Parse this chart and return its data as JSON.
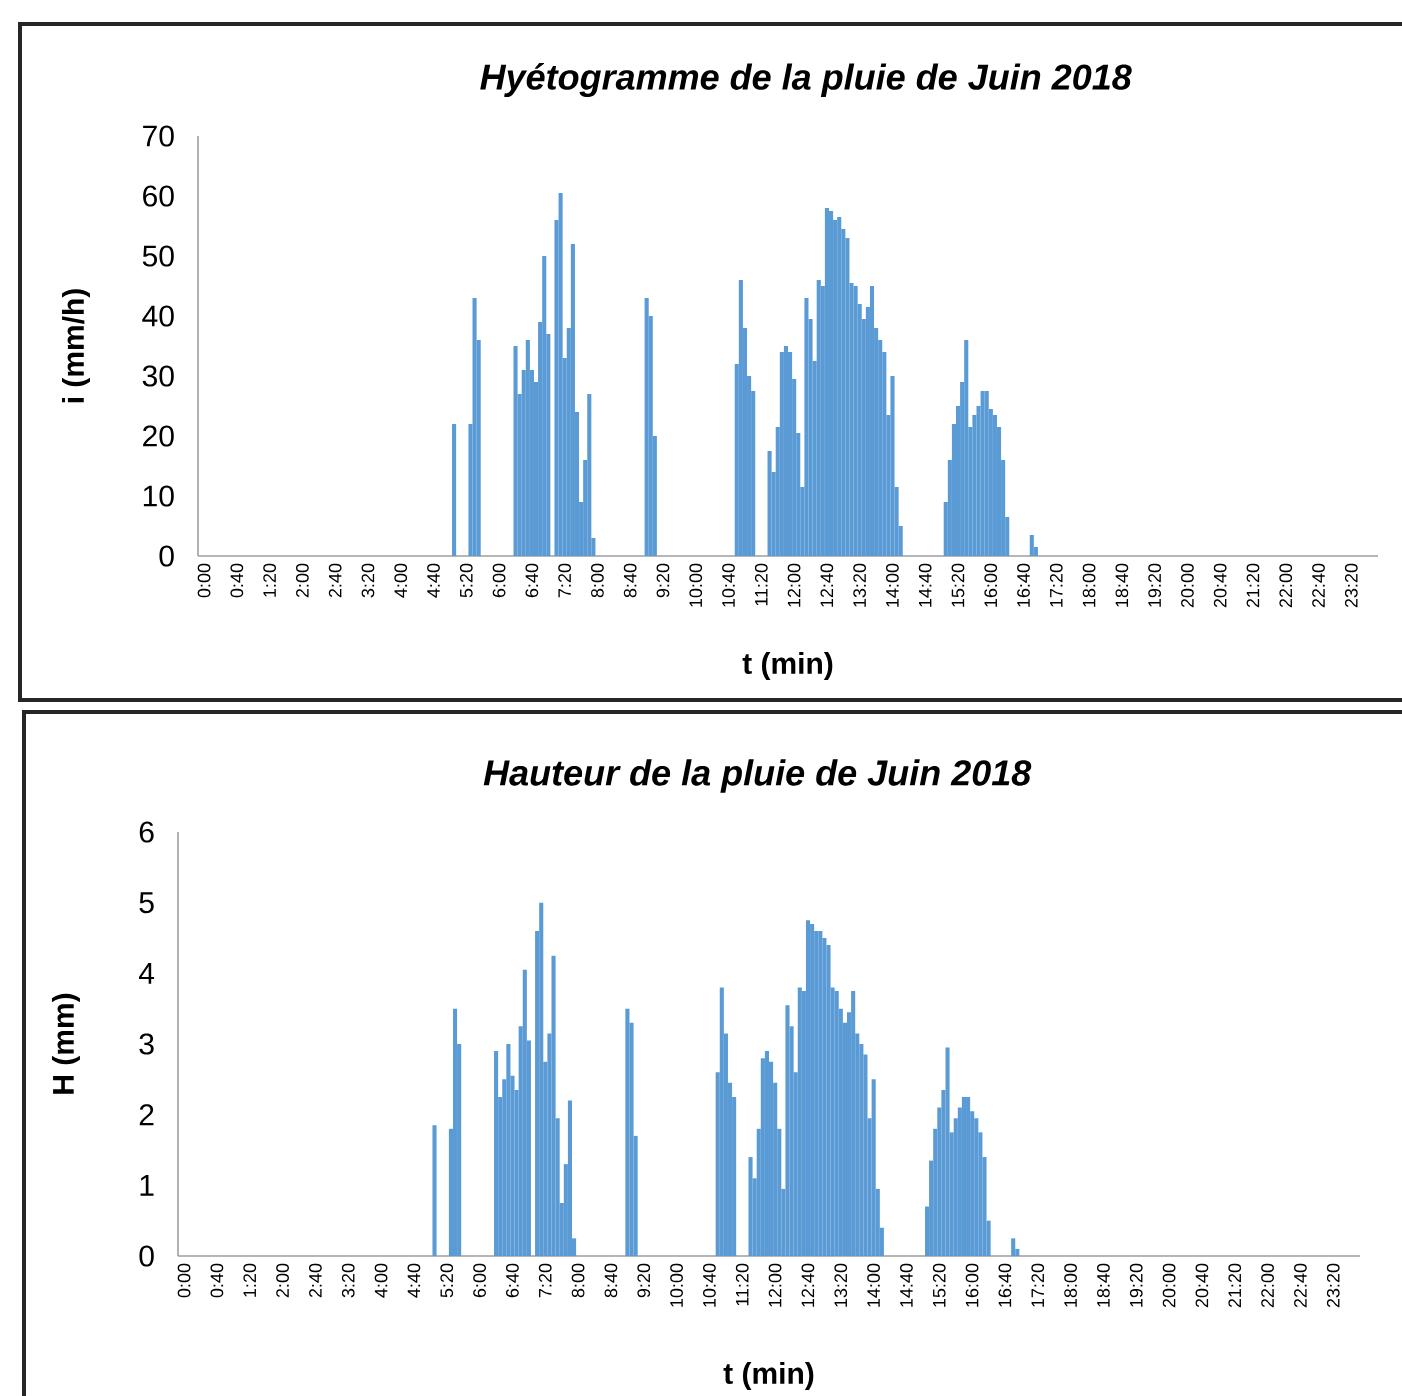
{
  "chart_data": [
    {
      "type": "bar",
      "title": "Hyétogramme de la pluie de Juin 2018",
      "xlabel": "t (min)",
      "ylabel": "i (mm/h)",
      "color": "#5b9bd5",
      "ylim": [
        0,
        70
      ],
      "yticks": [
        0,
        10,
        20,
        30,
        40,
        50,
        60,
        70
      ],
      "categories": [
        "0:00",
        null,
        null,
        null,
        null,
        null,
        null,
        null,
        "0:40",
        null,
        null,
        null,
        null,
        null,
        null,
        null,
        "1:20",
        null,
        null,
        null,
        null,
        null,
        null,
        null,
        "2:00",
        null,
        null,
        null,
        null,
        null,
        null,
        null,
        "2:40",
        null,
        null,
        null,
        null,
        null,
        null,
        null,
        "3:20",
        null,
        null,
        null,
        null,
        null,
        null,
        null,
        "4:00",
        null,
        null,
        null,
        null,
        null,
        null,
        null,
        "4:40",
        null,
        null,
        null,
        null,
        null,
        null,
        null,
        "5:20",
        null,
        null,
        null,
        null,
        null,
        null,
        null,
        "6:00",
        null,
        null,
        null,
        null,
        null,
        null,
        null,
        "6:40",
        null,
        null,
        null,
        null,
        null,
        null,
        null,
        "7:20",
        null,
        null,
        null,
        null,
        null,
        null,
        null,
        "8:00",
        null,
        null,
        null,
        null,
        null,
        null,
        null,
        "8:40",
        null,
        null,
        null,
        null,
        null,
        null,
        null,
        "9:20",
        null,
        null,
        null,
        null,
        null,
        null,
        null,
        "10:00",
        null,
        null,
        null,
        null,
        null,
        null,
        null,
        "10:40",
        null,
        null,
        null,
        null,
        null,
        null,
        null,
        "11:20",
        null,
        null,
        null,
        null,
        null,
        null,
        null,
        "12:00",
        null,
        null,
        null,
        null,
        null,
        null,
        null,
        "12:40",
        null,
        null,
        null,
        null,
        null,
        null,
        null,
        "13:20",
        null,
        null,
        null,
        null,
        null,
        null,
        null,
        "14:00",
        null,
        null,
        null,
        null,
        null,
        null,
        null,
        "14:40",
        null,
        null,
        null,
        null,
        null,
        null,
        null,
        "15:20",
        null,
        null,
        null,
        null,
        null,
        null,
        null,
        "16:00",
        null,
        null,
        null,
        null,
        null,
        null,
        null,
        "16:40",
        null,
        null,
        null,
        null,
        null,
        null,
        null,
        "17:20",
        null,
        null,
        null,
        null,
        null,
        null,
        null,
        "18:00",
        null,
        null,
        null,
        null,
        null,
        null,
        null,
        "18:40",
        null,
        null,
        null,
        null,
        null,
        null,
        null,
        "19:20",
        null,
        null,
        null,
        null,
        null,
        null,
        null,
        "20:00",
        null,
        null,
        null,
        null,
        null,
        null,
        null,
        "20:40",
        null,
        null,
        null,
        null,
        null,
        null,
        null,
        "21:20",
        null,
        null,
        null,
        null,
        null,
        null,
        null,
        "22:00",
        null,
        null,
        null,
        null,
        null,
        null,
        null,
        "22:40",
        null,
        null,
        null,
        null,
        null,
        null,
        null,
        "23:20",
        null,
        null,
        null,
        null,
        null,
        null,
        null
      ],
      "values": [
        0,
        0,
        0,
        0,
        0,
        0,
        0,
        0,
        0,
        0,
        0,
        0,
        0,
        0,
        0,
        0,
        0,
        0,
        0,
        0,
        0,
        0,
        0,
        0,
        0,
        0,
        0,
        0,
        0,
        0,
        0,
        0,
        0,
        0,
        0,
        0,
        0,
        0,
        0,
        0,
        0,
        0,
        0,
        0,
        0,
        0,
        0,
        0,
        0,
        0,
        0,
        0,
        0,
        0,
        0,
        0,
        0,
        0,
        0,
        0,
        0,
        0,
        22,
        0,
        0,
        0,
        22,
        43,
        36,
        0,
        0,
        0,
        0,
        0,
        0,
        0,
        0,
        35,
        27,
        31,
        36,
        31,
        29,
        39,
        50,
        37,
        0,
        56,
        60.5,
        33,
        38,
        52,
        24,
        9,
        16,
        27,
        3,
        0,
        0,
        0,
        0,
        0,
        0,
        0,
        0,
        0,
        0,
        0,
        0,
        43,
        40,
        20,
        0,
        0,
        0,
        0,
        0,
        0,
        0,
        0,
        0,
        0,
        0,
        0,
        0,
        0,
        0,
        0,
        0,
        0,
        0,
        32,
        46,
        38,
        30,
        27.5,
        0,
        0,
        0,
        17.5,
        14,
        21.5,
        34,
        35,
        34,
        29.5,
        20.5,
        11.5,
        43,
        39.5,
        32.5,
        46,
        45,
        58,
        57.5,
        56,
        56.5,
        54.5,
        53,
        45.5,
        45,
        42,
        39.5,
        41.5,
        45,
        38,
        36,
        34,
        23.5,
        30,
        11.5,
        5,
        0,
        0,
        0,
        0,
        0,
        0,
        0,
        0,
        0,
        0,
        9,
        16,
        22,
        25,
        29,
        36,
        21.5,
        23.5,
        25,
        27.5,
        27.5,
        24.5,
        23.5,
        21.5,
        16,
        6.5,
        0,
        0,
        0,
        0,
        0,
        3.5,
        1.5,
        0,
        0,
        0,
        0,
        0,
        0,
        0,
        0,
        0,
        0,
        0,
        0,
        0,
        0,
        0,
        0,
        0,
        0,
        0,
        0,
        0,
        0,
        0,
        0,
        0,
        0,
        0,
        0,
        0,
        0,
        0,
        0,
        0,
        0,
        0,
        0,
        0,
        0,
        0,
        0,
        0,
        0,
        0,
        0,
        0,
        0,
        0,
        0,
        0,
        0,
        0,
        0,
        0,
        0,
        0,
        0,
        0,
        0,
        0,
        0,
        0,
        0,
        0,
        0,
        0,
        0,
        0,
        0,
        0,
        0,
        0,
        0,
        0,
        0,
        0,
        0,
        0,
        0,
        0,
        0,
        0,
        0,
        0
      ]
    },
    {
      "type": "bar",
      "title": "Hauteur de la pluie de Juin 2018",
      "xlabel": "t (min)",
      "ylabel": "H (mm)",
      "color": "#5b9bd5",
      "ylim": [
        0,
        6
      ],
      "yticks": [
        0,
        1,
        2,
        3,
        4,
        5,
        6
      ],
      "categories": [
        "0:00",
        null,
        null,
        null,
        null,
        null,
        null,
        null,
        "0:40",
        null,
        null,
        null,
        null,
        null,
        null,
        null,
        "1:20",
        null,
        null,
        null,
        null,
        null,
        null,
        null,
        "2:00",
        null,
        null,
        null,
        null,
        null,
        null,
        null,
        "2:40",
        null,
        null,
        null,
        null,
        null,
        null,
        null,
        "3:20",
        null,
        null,
        null,
        null,
        null,
        null,
        null,
        "4:00",
        null,
        null,
        null,
        null,
        null,
        null,
        null,
        "4:40",
        null,
        null,
        null,
        null,
        null,
        null,
        null,
        "5:20",
        null,
        null,
        null,
        null,
        null,
        null,
        null,
        "6:00",
        null,
        null,
        null,
        null,
        null,
        null,
        null,
        "6:40",
        null,
        null,
        null,
        null,
        null,
        null,
        null,
        "7:20",
        null,
        null,
        null,
        null,
        null,
        null,
        null,
        "8:00",
        null,
        null,
        null,
        null,
        null,
        null,
        null,
        "8:40",
        null,
        null,
        null,
        null,
        null,
        null,
        null,
        "9:20",
        null,
        null,
        null,
        null,
        null,
        null,
        null,
        "10:00",
        null,
        null,
        null,
        null,
        null,
        null,
        null,
        "10:40",
        null,
        null,
        null,
        null,
        null,
        null,
        null,
        "11:20",
        null,
        null,
        null,
        null,
        null,
        null,
        null,
        "12:00",
        null,
        null,
        null,
        null,
        null,
        null,
        null,
        "12:40",
        null,
        null,
        null,
        null,
        null,
        null,
        null,
        "13:20",
        null,
        null,
        null,
        null,
        null,
        null,
        null,
        "14:00",
        null,
        null,
        null,
        null,
        null,
        null,
        null,
        "14:40",
        null,
        null,
        null,
        null,
        null,
        null,
        null,
        "15:20",
        null,
        null,
        null,
        null,
        null,
        null,
        null,
        "16:00",
        null,
        null,
        null,
        null,
        null,
        null,
        null,
        "16:40",
        null,
        null,
        null,
        null,
        null,
        null,
        null,
        "17:20",
        null,
        null,
        null,
        null,
        null,
        null,
        null,
        "18:00",
        null,
        null,
        null,
        null,
        null,
        null,
        null,
        "18:40",
        null,
        null,
        null,
        null,
        null,
        null,
        null,
        "19:20",
        null,
        null,
        null,
        null,
        null,
        null,
        null,
        "20:00",
        null,
        null,
        null,
        null,
        null,
        null,
        null,
        "20:40",
        null,
        null,
        null,
        null,
        null,
        null,
        null,
        "21:20",
        null,
        null,
        null,
        null,
        null,
        null,
        null,
        "22:00",
        null,
        null,
        null,
        null,
        null,
        null,
        null,
        "22:40",
        null,
        null,
        null,
        null,
        null,
        null,
        null,
        "23:20",
        null,
        null,
        null,
        null,
        null,
        null,
        null
      ],
      "values": [
        0,
        0,
        0,
        0,
        0,
        0,
        0,
        0,
        0,
        0,
        0,
        0,
        0,
        0,
        0,
        0,
        0,
        0,
        0,
        0,
        0,
        0,
        0,
        0,
        0,
        0,
        0,
        0,
        0,
        0,
        0,
        0,
        0,
        0,
        0,
        0,
        0,
        0,
        0,
        0,
        0,
        0,
        0,
        0,
        0,
        0,
        0,
        0,
        0,
        0,
        0,
        0,
        0,
        0,
        0,
        0,
        0,
        0,
        0,
        0,
        0,
        0,
        1.85,
        0,
        0,
        0,
        1.8,
        3.5,
        3.0,
        0,
        0,
        0,
        0,
        0,
        0,
        0,
        0,
        2.9,
        2.25,
        2.5,
        3.0,
        2.55,
        2.35,
        3.25,
        4.05,
        3.05,
        0,
        4.6,
        5.0,
        2.75,
        3.15,
        4.25,
        1.95,
        0.75,
        1.3,
        2.2,
        0.25,
        0,
        0,
        0,
        0,
        0,
        0,
        0,
        0,
        0,
        0,
        0,
        0,
        3.5,
        3.3,
        1.7,
        0,
        0,
        0,
        0,
        0,
        0,
        0,
        0,
        0,
        0,
        0,
        0,
        0,
        0,
        0,
        0,
        0,
        0,
        0,
        2.6,
        3.8,
        3.15,
        2.45,
        2.25,
        0,
        0,
        0,
        1.4,
        1.1,
        1.8,
        2.8,
        2.9,
        2.75,
        2.45,
        1.8,
        0.95,
        3.55,
        3.25,
        2.6,
        3.8,
        3.75,
        4.75,
        4.7,
        4.6,
        4.6,
        4.5,
        4.4,
        3.8,
        3.75,
        3.5,
        3.3,
        3.45,
        3.75,
        3.15,
        3.0,
        2.85,
        1.95,
        2.5,
        0.95,
        0.4,
        0,
        0,
        0,
        0,
        0,
        0,
        0,
        0,
        0,
        0,
        0.7,
        1.35,
        1.8,
        2.1,
        2.35,
        2.95,
        1.75,
        1.95,
        2.1,
        2.25,
        2.25,
        2.05,
        1.95,
        1.75,
        1.4,
        0.5,
        0,
        0,
        0,
        0,
        0,
        0.25,
        0.1,
        0,
        0,
        0,
        0,
        0,
        0,
        0,
        0,
        0,
        0,
        0,
        0,
        0,
        0,
        0,
        0,
        0,
        0,
        0,
        0,
        0,
        0,
        0,
        0,
        0,
        0,
        0,
        0,
        0,
        0,
        0,
        0,
        0,
        0,
        0,
        0,
        0,
        0,
        0,
        0,
        0,
        0,
        0,
        0,
        0,
        0,
        0,
        0,
        0,
        0,
        0,
        0,
        0,
        0,
        0,
        0,
        0,
        0,
        0,
        0,
        0,
        0,
        0,
        0,
        0,
        0,
        0,
        0,
        0,
        0,
        0,
        0,
        0,
        0,
        0,
        0,
        0,
        0,
        0,
        0,
        0,
        0,
        0
      ]
    }
  ]
}
